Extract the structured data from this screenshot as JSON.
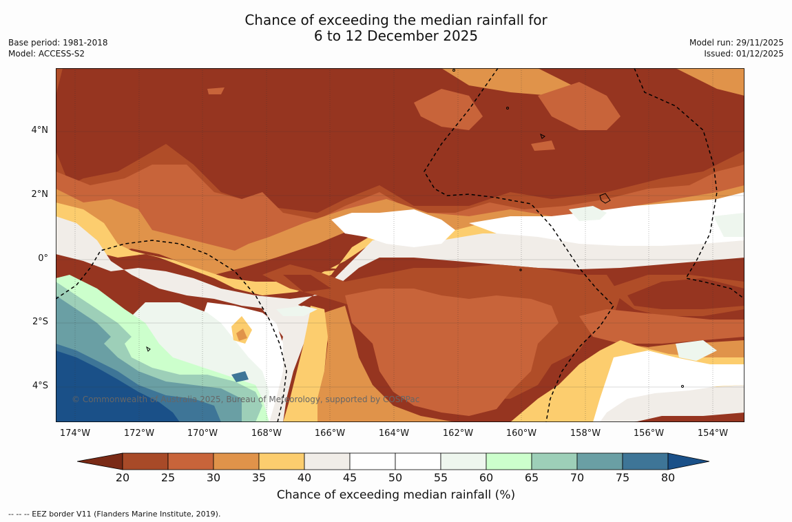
{
  "title_line1": "Chance of exceeding the median rainfall for",
  "title_line2": "6 to 12 December 2025",
  "meta_left": {
    "base_period": "Base period: 1981-2018",
    "model": "Model: ACCESS-S2"
  },
  "meta_right": {
    "model_run": "Model run: 29/11/2025",
    "issued": "Issued: 01/12/2025"
  },
  "x_ticks": [
    "174°W",
    "172°W",
    "170°W",
    "168°W",
    "166°W",
    "164°W",
    "162°W",
    "160°W",
    "158°W",
    "156°W",
    "154°W"
  ],
  "y_ticks": [
    "4°N",
    "2°N",
    "0°",
    "2°S",
    "4°S"
  ],
  "colorbar": {
    "labels": [
      "20",
      "25",
      "30",
      "35",
      "40",
      "45",
      "50",
      "55",
      "60",
      "65",
      "70",
      "75",
      "80"
    ],
    "colors": [
      "#7a2a16",
      "#a84a28",
      "#c8643a",
      "#e0934a",
      "#fccd6e",
      "#f1ede8",
      "#ffffff",
      "#ffffff",
      "#eef6ee",
      "#ccffcc",
      "#9dcfb8",
      "#6a9fa4",
      "#3e7597",
      "#1a5088"
    ],
    "title": "Chance of exceeding median rainfall (%)"
  },
  "copyright": "© Commonwealth of Australia 2025, Bureau of Meteorology, supported by COSPPac",
  "footnote": "--  --  -- EEZ border V11 (Flanders Marine Institute, 2019)."
}
